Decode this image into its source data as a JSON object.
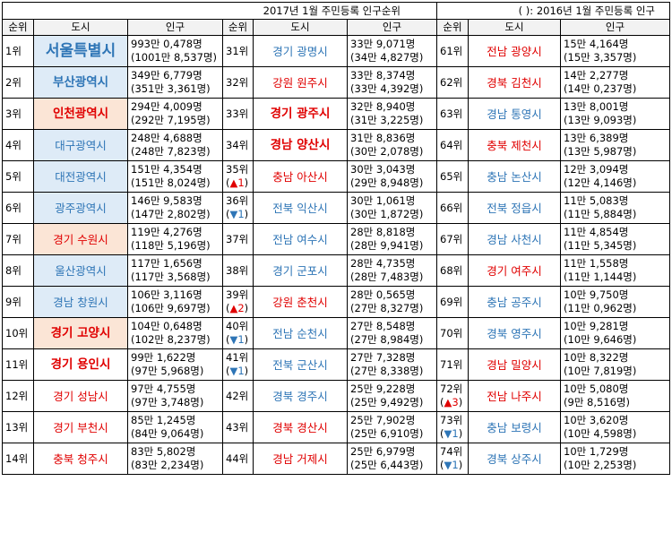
{
  "title": "2017년 1월 주민등록 인구순위",
  "note": "( ): 2016년 1월 주민등록 인구",
  "headers": {
    "rank": "순위",
    "city": "도시",
    "pop": "인구"
  },
  "colors": {
    "blue": "#2e75b6",
    "red": "#e00000",
    "bg_blue": "#deebf7",
    "bg_orange": "#fbe5d6"
  },
  "rows": [
    [
      {
        "rank": "1위",
        "city": "서울특별시",
        "color": "blue",
        "style": "big",
        "bg": "blue",
        "pop": "993만 0,478명",
        "prev": "(1001만 8,537명)"
      },
      {
        "rank": "31위",
        "city": "경기 광명시",
        "color": "blue",
        "pop": "33만 9,071명",
        "prev": "(34만 4,827명)"
      },
      {
        "rank": "61위",
        "city": "전남 광양시",
        "color": "red",
        "pop": "15만 4,164명",
        "prev": "(15만 3,357명)"
      }
    ],
    [
      {
        "rank": "2위",
        "city": "부산광역시",
        "color": "blue",
        "style": "bold",
        "bg": "blue",
        "pop": "349만 6,779명",
        "prev": "(351만 3,361명)"
      },
      {
        "rank": "32위",
        "city": "강원 원주시",
        "color": "red",
        "pop": "33만 8,374명",
        "prev": "(33만 4,392명)"
      },
      {
        "rank": "62위",
        "city": "경북 김천시",
        "color": "red",
        "pop": "14만 2,277명",
        "prev": "(14만 0,237명)"
      }
    ],
    [
      {
        "rank": "3위",
        "city": "인천광역시",
        "color": "red",
        "style": "bold",
        "bg": "orange",
        "pop": "294만 4,009명",
        "prev": "(292만 7,195명)"
      },
      {
        "rank": "33위",
        "city": "경기 광주시",
        "color": "red",
        "style": "bold",
        "pop": "32만 8,940명",
        "prev": "(31만 3,225명)"
      },
      {
        "rank": "63위",
        "city": "경남 통영시",
        "color": "blue",
        "pop": "13만 8,001명",
        "prev": "(13만 9,093명)"
      }
    ],
    [
      {
        "rank": "4위",
        "city": "대구광역시",
        "color": "blue",
        "bg": "blue",
        "pop": "248만 4,688명",
        "prev": "(248만 7,823명)"
      },
      {
        "rank": "34위",
        "city": "경남 양산시",
        "color": "red",
        "style": "bold",
        "pop": "31만 8,836명",
        "prev": "(30만 2,078명)"
      },
      {
        "rank": "64위",
        "city": "충북 제천시",
        "color": "red",
        "pop": "13만 6,389명",
        "prev": "(13만 5,987명)"
      }
    ],
    [
      {
        "rank": "5위",
        "city": "대전광역시",
        "color": "blue",
        "bg": "blue",
        "pop": "151만 4,354명",
        "prev": "(151만 8,024명)"
      },
      {
        "rank": "35위",
        "change": "▲1",
        "dir": "up",
        "city": "충남 아산시",
        "color": "red",
        "pop": "30만 3,043명",
        "prev": "(29만 8,948명)"
      },
      {
        "rank": "65위",
        "city": "충남 논산시",
        "color": "blue",
        "pop": "12만 3,094명",
        "prev": "(12만 4,146명)"
      }
    ],
    [
      {
        "rank": "6위",
        "city": "광주광역시",
        "color": "blue",
        "bg": "blue",
        "pop": "146만 9,583명",
        "prev": "(147만 2,802명)"
      },
      {
        "rank": "36위",
        "change": "▼1",
        "dir": "down",
        "city": "전북 익산시",
        "color": "blue",
        "pop": "30만 1,061명",
        "prev": "(30만 1,872명)"
      },
      {
        "rank": "66위",
        "city": "전북 정읍시",
        "color": "blue",
        "pop": "11만 5,083명",
        "prev": "(11만 5,884명)"
      }
    ],
    [
      {
        "rank": "7위",
        "city": "경기 수원시",
        "color": "red",
        "bg": "orange",
        "pop": "119만 4,276명",
        "prev": "(118만 5,196명)"
      },
      {
        "rank": "37위",
        "city": "전남 여수시",
        "color": "blue",
        "pop": "28만 8,818명",
        "prev": "(28만 9,941명)"
      },
      {
        "rank": "67위",
        "city": "경남 사천시",
        "color": "blue",
        "pop": "11만 4,854명",
        "prev": "(11만 5,345명)"
      }
    ],
    [
      {
        "rank": "8위",
        "city": "울산광역시",
        "color": "blue",
        "bg": "blue",
        "pop": "117만 1,656명",
        "prev": "(117만 3,568명)"
      },
      {
        "rank": "38위",
        "city": "경기 군포시",
        "color": "blue",
        "pop": "28만 4,735명",
        "prev": "(28만 7,483명)"
      },
      {
        "rank": "68위",
        "city": "경기 여주시",
        "color": "red",
        "pop": "11만 1,558명",
        "prev": "(11만 1,144명)"
      }
    ],
    [
      {
        "rank": "9위",
        "city": "경남 창원시",
        "color": "blue",
        "bg": "blue",
        "pop": "106만 3,116명",
        "prev": "(106만 9,697명)"
      },
      {
        "rank": "39위",
        "change": "▲2",
        "dir": "up",
        "city": "강원 춘천시",
        "color": "red",
        "pop": "28만 0,565명",
        "prev": "(27만 8,327명)"
      },
      {
        "rank": "69위",
        "city": "충남 공주시",
        "color": "blue",
        "pop": "10만 9,750명",
        "prev": "(11만 0,962명)"
      }
    ],
    [
      {
        "rank": "10위",
        "city": "경기 고양시",
        "color": "red",
        "style": "bold",
        "bg": "orange",
        "pop": "104만 0,648명",
        "prev": "(102만 8,237명)"
      },
      {
        "rank": "40위",
        "change": "▼1",
        "dir": "down",
        "city": "전남 순천시",
        "color": "blue",
        "pop": "27만 8,548명",
        "prev": "(27만 8,984명)"
      },
      {
        "rank": "70위",
        "city": "경북 영주시",
        "color": "blue",
        "pop": "10만 9,281명",
        "prev": "(10만 9,646명)"
      }
    ],
    [
      {
        "rank": "11위",
        "city": "경기 용인시",
        "color": "red",
        "style": "bold",
        "pop": "99만 1,622명",
        "prev": "(97만 5,968명)"
      },
      {
        "rank": "41위",
        "change": "▼1",
        "dir": "down",
        "city": "전북 군산시",
        "color": "blue",
        "pop": "27만 7,328명",
        "prev": "(27만 8,338명)"
      },
      {
        "rank": "71위",
        "city": "경남 밀양시",
        "color": "red",
        "pop": "10만 8,322명",
        "prev": "(10만 7,819명)"
      }
    ],
    [
      {
        "rank": "12위",
        "city": "경기 성남시",
        "color": "red",
        "pop": "97만 4,755명",
        "prev": "(97만 3,748명)"
      },
      {
        "rank": "42위",
        "city": "경북 경주시",
        "color": "blue",
        "pop": "25만 9,228명",
        "prev": "(25만 9,492명)"
      },
      {
        "rank": "72위",
        "change": "▲3",
        "dir": "up",
        "city": "전남 나주시",
        "color": "red",
        "pop": "10만 5,080명",
        "prev": "(9만 8,516명)"
      }
    ],
    [
      {
        "rank": "13위",
        "city": "경기 부천시",
        "color": "red",
        "pop": "85만 1,245명",
        "prev": "(84만 9,064명)"
      },
      {
        "rank": "43위",
        "city": "경북 경산시",
        "color": "red",
        "pop": "25만 7,902명",
        "prev": "(25만 6,910명)"
      },
      {
        "rank": "73위",
        "change": "▼1",
        "dir": "down",
        "city": "충남 보령시",
        "color": "blue",
        "pop": "10만 3,620명",
        "prev": "(10만 4,598명)"
      }
    ],
    [
      {
        "rank": "14위",
        "city": "충북 청주시",
        "color": "red",
        "pop": "83만 5,802명",
        "prev": "(83만 2,234명)"
      },
      {
        "rank": "44위",
        "city": "경남 거제시",
        "color": "red",
        "pop": "25만 6,979명",
        "prev": "(25만 6,443명)"
      },
      {
        "rank": "74위",
        "change": "▼1",
        "dir": "down",
        "city": "경북 상주시",
        "color": "blue",
        "pop": "10만 1,729명",
        "prev": "(10만 2,253명)"
      }
    ]
  ]
}
